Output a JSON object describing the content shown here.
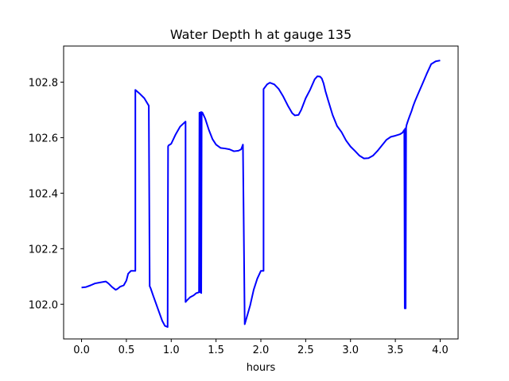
{
  "chart_data": {
    "type": "line",
    "title": "Water Depth h at gauge 135",
    "xlabel": "hours",
    "ylabel": "",
    "xlim": [
      -0.2,
      4.2
    ],
    "ylim": [
      101.875,
      102.93
    ],
    "xticks": [
      0.0,
      0.5,
      1.0,
      1.5,
      2.0,
      2.5,
      3.0,
      3.5,
      4.0
    ],
    "xtick_labels": [
      "0.0",
      "0.5",
      "1.0",
      "1.5",
      "2.0",
      "2.5",
      "3.0",
      "3.5",
      "4.0"
    ],
    "yticks": [
      102.0,
      102.2,
      102.4,
      102.6,
      102.8
    ],
    "ytick_labels": [
      "102.0",
      "102.2",
      "102.4",
      "102.6",
      "102.8"
    ],
    "grid": false,
    "series": [
      {
        "color": "#0000ff",
        "x": [
          0.0,
          0.05,
          0.1,
          0.15,
          0.2,
          0.27,
          0.3,
          0.34,
          0.38,
          0.4,
          0.43,
          0.47,
          0.5,
          0.52,
          0.55,
          0.6,
          0.6,
          0.65,
          0.7,
          0.75,
          0.76,
          0.77,
          0.8,
          0.85,
          0.9,
          0.93,
          0.96,
          0.965,
          0.97,
          1.0,
          1.05,
          1.1,
          1.16,
          1.16,
          1.17,
          1.21,
          1.25,
          1.28,
          1.31,
          1.315,
          1.32,
          1.32,
          1.325,
          1.33,
          1.335,
          1.34,
          1.35,
          1.38,
          1.42,
          1.46,
          1.5,
          1.55,
          1.6,
          1.65,
          1.7,
          1.75,
          1.78,
          1.8,
          1.82,
          1.82,
          1.84,
          1.88,
          1.92,
          1.96,
          2.0,
          2.03,
          2.03,
          2.07,
          2.1,
          2.15,
          2.2,
          2.25,
          2.3,
          2.35,
          2.38,
          2.42,
          2.45,
          2.5,
          2.55,
          2.6,
          2.63,
          2.66,
          2.68,
          2.7,
          2.72,
          2.75,
          2.8,
          2.85,
          2.9,
          2.95,
          3.0,
          3.05,
          3.1,
          3.15,
          3.2,
          3.25,
          3.3,
          3.35,
          3.4,
          3.45,
          3.5,
          3.55,
          3.58,
          3.6,
          3.605,
          3.61,
          3.615,
          3.62,
          3.625,
          3.64,
          3.66,
          3.68,
          3.7,
          3.72,
          3.75,
          3.8,
          3.85,
          3.9,
          3.95,
          4.0
        ],
        "y": [
          102.06,
          102.062,
          102.068,
          102.075,
          102.078,
          102.082,
          102.075,
          102.062,
          102.052,
          102.055,
          102.063,
          102.068,
          102.085,
          102.11,
          102.12,
          102.12,
          102.772,
          102.758,
          102.742,
          102.715,
          102.065,
          102.058,
          102.03,
          101.985,
          101.94,
          101.922,
          101.918,
          102.568,
          102.572,
          102.578,
          102.612,
          102.64,
          102.658,
          102.008,
          102.012,
          102.025,
          102.032,
          102.04,
          102.043,
          102.69,
          102.045,
          102.69,
          102.043,
          102.692,
          102.04,
          102.692,
          102.689,
          102.668,
          102.628,
          102.595,
          102.575,
          102.563,
          102.561,
          102.558,
          102.551,
          102.553,
          102.558,
          102.575,
          101.928,
          101.928,
          101.95,
          101.995,
          102.052,
          102.092,
          102.12,
          102.12,
          102.775,
          102.792,
          102.798,
          102.792,
          102.775,
          102.748,
          102.716,
          102.688,
          102.68,
          102.682,
          102.7,
          102.742,
          102.773,
          102.81,
          102.821,
          102.82,
          102.813,
          102.795,
          102.768,
          102.735,
          102.682,
          102.642,
          102.62,
          102.59,
          102.568,
          102.552,
          102.535,
          102.525,
          102.526,
          102.535,
          102.552,
          102.572,
          102.592,
          102.603,
          102.607,
          102.612,
          102.618,
          102.628,
          101.985,
          102.633,
          101.985,
          102.635,
          102.645,
          102.66,
          102.678,
          102.695,
          102.715,
          102.732,
          102.755,
          102.792,
          102.83,
          102.865,
          102.875,
          102.878
        ]
      }
    ]
  }
}
